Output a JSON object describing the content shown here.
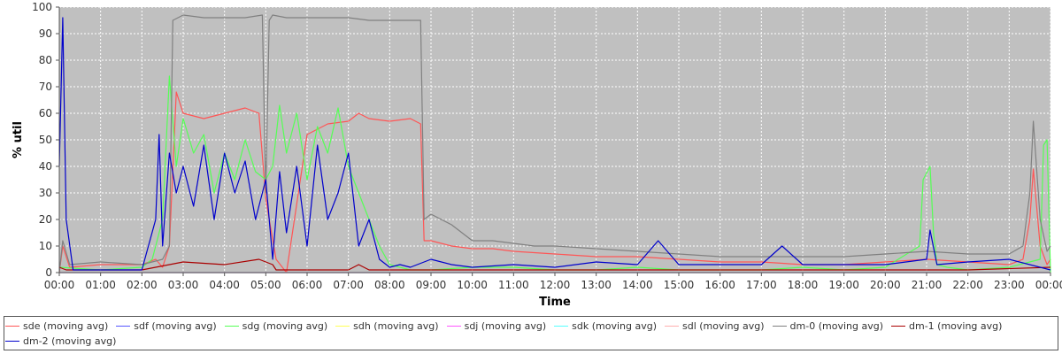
{
  "chart_data": {
    "type": "line",
    "xlabel": "Time",
    "ylabel": "% util",
    "ylim": [
      0,
      100
    ],
    "yticks": [
      "0",
      "10",
      "20",
      "30",
      "40",
      "50",
      "60",
      "70",
      "80",
      "90",
      "100"
    ],
    "xlim": [
      "00:00",
      "24:00"
    ],
    "xticks": [
      "00:00",
      "01:00",
      "02:00",
      "03:00",
      "04:00",
      "05:00",
      "06:00",
      "07:00",
      "08:00",
      "09:00",
      "10:00",
      "11:00",
      "12:00",
      "13:00",
      "14:00",
      "15:00",
      "16:00",
      "17:00",
      "18:00",
      "19:00",
      "20:00",
      "21:00",
      "22:00",
      "23:00",
      "00:00"
    ],
    "grid": true,
    "legend_position": "bottom",
    "series": [
      {
        "name": "sde (moving avg)",
        "color": "#ff5555",
        "x": [
          "00:00",
          "00:05",
          "00:15",
          "01:00",
          "02:00",
          "02:20",
          "02:30",
          "02:40",
          "02:50",
          "03:00",
          "03:30",
          "04:00",
          "04:30",
          "04:50",
          "05:00",
          "05:05",
          "05:15",
          "05:30",
          "06:00",
          "06:30",
          "07:00",
          "07:15",
          "07:30",
          "08:00",
          "08:30",
          "08:45",
          "08:50",
          "09:00",
          "09:30",
          "10:00",
          "10:30",
          "11:00",
          "12:00",
          "13:00",
          "14:00",
          "15:00",
          "16:00",
          "17:00",
          "18:00",
          "19:00",
          "20:00",
          "21:00",
          "22:00",
          "23:00",
          "23:20",
          "23:30",
          "23:35",
          "23:45",
          "23:55",
          "24:00"
        ],
        "y": [
          0,
          10,
          2,
          3,
          3,
          5,
          2,
          10,
          68,
          60,
          58,
          60,
          62,
          60,
          28,
          20,
          5,
          0,
          52,
          56,
          57,
          60,
          58,
          57,
          58,
          56,
          12,
          12,
          10,
          9,
          9,
          8,
          7,
          6,
          6,
          5,
          4,
          4,
          3,
          3,
          4,
          5,
          4,
          3,
          5,
          20,
          39,
          10,
          3,
          5
        ]
      },
      {
        "name": "sdf (moving avg)",
        "color": "#5555ff",
        "x": [
          "00:00",
          "06:00",
          "12:00",
          "18:00",
          "24:00"
        ],
        "y": [
          0,
          0,
          0,
          0,
          0
        ]
      },
      {
        "name": "sdg (moving avg)",
        "color": "#55ff55",
        "x": [
          "00:00",
          "01:00",
          "02:00",
          "02:15",
          "02:30",
          "02:40",
          "02:50",
          "03:00",
          "03:15",
          "03:30",
          "03:45",
          "04:00",
          "04:15",
          "04:30",
          "04:45",
          "05:00",
          "05:10",
          "05:20",
          "05:30",
          "05:45",
          "06:00",
          "06:15",
          "06:30",
          "06:45",
          "07:00",
          "07:15",
          "07:30",
          "07:45",
          "08:00",
          "08:15",
          "08:30",
          "08:45",
          "09:00",
          "10:00",
          "11:00",
          "12:00",
          "13:00",
          "14:00",
          "15:00",
          "16:00",
          "17:00",
          "18:00",
          "19:00",
          "20:00",
          "20:50",
          "20:55",
          "21:05",
          "21:10",
          "21:15",
          "21:30",
          "22:00",
          "23:00",
          "23:45",
          "23:50",
          "23:55",
          "24:00"
        ],
        "y": [
          2,
          1,
          2,
          5,
          20,
          74,
          40,
          58,
          45,
          52,
          30,
          45,
          35,
          50,
          38,
          35,
          40,
          63,
          45,
          60,
          35,
          55,
          45,
          62,
          40,
          30,
          20,
          10,
          3,
          2,
          1,
          1,
          1,
          2,
          2,
          1,
          1,
          2,
          1,
          1,
          1,
          2,
          1,
          2,
          10,
          35,
          40,
          15,
          3,
          2,
          1,
          2,
          5,
          48,
          50,
          0
        ]
      },
      {
        "name": "sdh (moving avg)",
        "color": "#ffff55",
        "x": [
          "00:00",
          "06:00",
          "12:00",
          "18:00",
          "24:00"
        ],
        "y": [
          0,
          0,
          0,
          0,
          0
        ]
      },
      {
        "name": "sdj (moving avg)",
        "color": "#ff55ff",
        "x": [
          "00:00",
          "06:00",
          "12:00",
          "18:00",
          "24:00"
        ],
        "y": [
          0,
          0,
          0,
          0,
          0
        ]
      },
      {
        "name": "sdk (moving avg)",
        "color": "#55ffff",
        "x": [
          "00:00",
          "06:00",
          "12:00",
          "18:00",
          "24:00"
        ],
        "y": [
          0,
          0,
          0,
          0,
          0
        ]
      },
      {
        "name": "sdl (moving avg)",
        "color": "#ffafaf",
        "x": [
          "00:00",
          "06:00",
          "12:00",
          "18:00",
          "24:00"
        ],
        "y": [
          0,
          0,
          0,
          0,
          0
        ]
      },
      {
        "name": "dm-0 (moving avg)",
        "color": "#808080",
        "x": [
          "00:00",
          "00:05",
          "00:15",
          "01:00",
          "02:00",
          "02:30",
          "02:40",
          "02:45",
          "03:00",
          "03:30",
          "04:00",
          "04:30",
          "04:55",
          "05:00",
          "05:05",
          "05:10",
          "05:30",
          "06:00",
          "06:30",
          "07:00",
          "07:30",
          "08:00",
          "08:30",
          "08:45",
          "08:50",
          "09:00",
          "09:30",
          "10:00",
          "10:30",
          "11:00",
          "11:30",
          "12:00",
          "13:00",
          "14:00",
          "15:00",
          "16:00",
          "17:00",
          "18:00",
          "19:00",
          "20:00",
          "21:00",
          "22:00",
          "23:00",
          "23:20",
          "23:30",
          "23:35",
          "23:45",
          "23:55",
          "24:00"
        ],
        "y": [
          0,
          12,
          3,
          4,
          3,
          5,
          10,
          95,
          97,
          96,
          96,
          96,
          97,
          30,
          95,
          97,
          96,
          96,
          96,
          96,
          95,
          95,
          95,
          95,
          20,
          22,
          18,
          12,
          12,
          11,
          10,
          10,
          9,
          8,
          7,
          6,
          6,
          6,
          6,
          7,
          8,
          7,
          7,
          10,
          30,
          57,
          20,
          8,
          10
        ]
      },
      {
        "name": "dm-1 (moving avg)",
        "color": "#aa0000",
        "x": [
          "00:00",
          "00:10",
          "01:00",
          "02:00",
          "02:40",
          "03:00",
          "04:00",
          "04:50",
          "05:10",
          "05:15",
          "06:00",
          "07:00",
          "07:15",
          "07:30",
          "08:00",
          "09:00",
          "10:00",
          "12:00",
          "14:00",
          "16:00",
          "18:00",
          "20:00",
          "22:00",
          "24:00"
        ],
        "y": [
          2,
          1,
          1,
          1,
          3,
          4,
          3,
          5,
          3,
          1,
          1,
          1,
          3,
          1,
          1,
          1,
          1,
          1,
          1,
          1,
          1,
          1,
          1,
          2
        ]
      },
      {
        "name": "dm-2 (moving avg)",
        "color": "#0000cc",
        "x": [
          "00:00",
          "00:05",
          "00:10",
          "00:20",
          "01:00",
          "02:00",
          "02:20",
          "02:25",
          "02:30",
          "02:40",
          "02:50",
          "03:00",
          "03:15",
          "03:30",
          "03:45",
          "04:00",
          "04:15",
          "04:30",
          "04:45",
          "05:00",
          "05:10",
          "05:20",
          "05:30",
          "05:45",
          "06:00",
          "06:15",
          "06:30",
          "06:45",
          "07:00",
          "07:15",
          "07:30",
          "07:45",
          "08:00",
          "08:15",
          "08:30",
          "09:00",
          "09:30",
          "10:00",
          "11:00",
          "12:00",
          "13:00",
          "14:00",
          "14:30",
          "15:00",
          "16:00",
          "17:00",
          "17:30",
          "18:00",
          "19:00",
          "20:00",
          "21:00",
          "21:05",
          "21:15",
          "22:00",
          "23:00",
          "24:00"
        ],
        "y": [
          40,
          96,
          20,
          1,
          1,
          1,
          20,
          52,
          10,
          45,
          30,
          40,
          25,
          48,
          20,
          45,
          30,
          42,
          20,
          35,
          5,
          38,
          15,
          40,
          10,
          48,
          20,
          30,
          45,
          10,
          20,
          5,
          2,
          3,
          2,
          5,
          3,
          2,
          3,
          2,
          4,
          3,
          12,
          3,
          3,
          3,
          10,
          3,
          3,
          3,
          5,
          16,
          3,
          4,
          5,
          1
        ]
      }
    ]
  }
}
